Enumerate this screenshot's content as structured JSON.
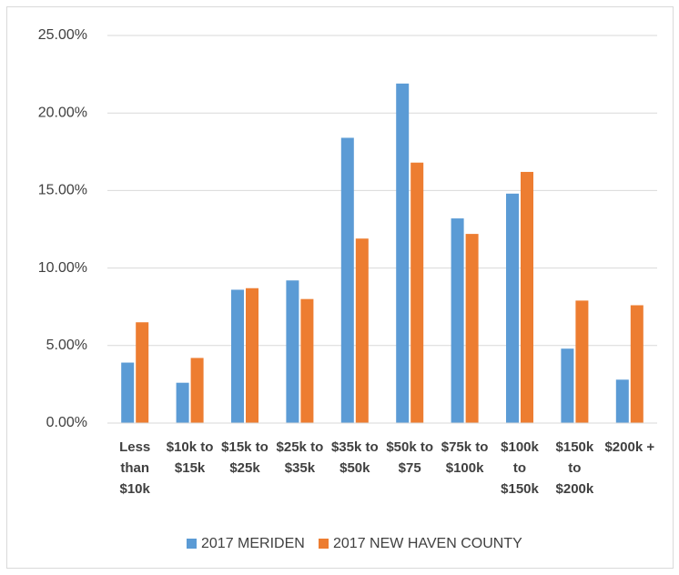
{
  "chart_data": {
    "type": "bar",
    "categories": [
      "Less than $10k",
      "$10k to $15k",
      "$15k to $25k",
      "$25k to $35k",
      "$35k to $50k",
      "$50k to $75",
      "$75k to $100k",
      "$100k to $150k",
      "$150k to $200k",
      "$200k +"
    ],
    "series": [
      {
        "name": "2017 MERIDEN",
        "color": "#5b9bd5",
        "values": [
          3.9,
          2.6,
          8.6,
          9.2,
          18.4,
          21.9,
          13.2,
          14.8,
          4.8,
          2.8
        ]
      },
      {
        "name": "2017 NEW HAVEN COUNTY",
        "color": "#ed7d31",
        "values": [
          6.5,
          4.2,
          8.7,
          8.0,
          11.9,
          16.8,
          12.2,
          16.2,
          7.9,
          7.6
        ]
      }
    ],
    "ylim": [
      0,
      25
    ],
    "yticks": [
      {
        "value": 0,
        "label": "0.00%"
      },
      {
        "value": 5,
        "label": "5.00%"
      },
      {
        "value": 10,
        "label": "10.00%"
      },
      {
        "value": 15,
        "label": "15.00%"
      },
      {
        "value": 20,
        "label": "20.00%"
      },
      {
        "value": 25,
        "label": "25.00%"
      }
    ],
    "grid": true,
    "legend": "bottom"
  }
}
